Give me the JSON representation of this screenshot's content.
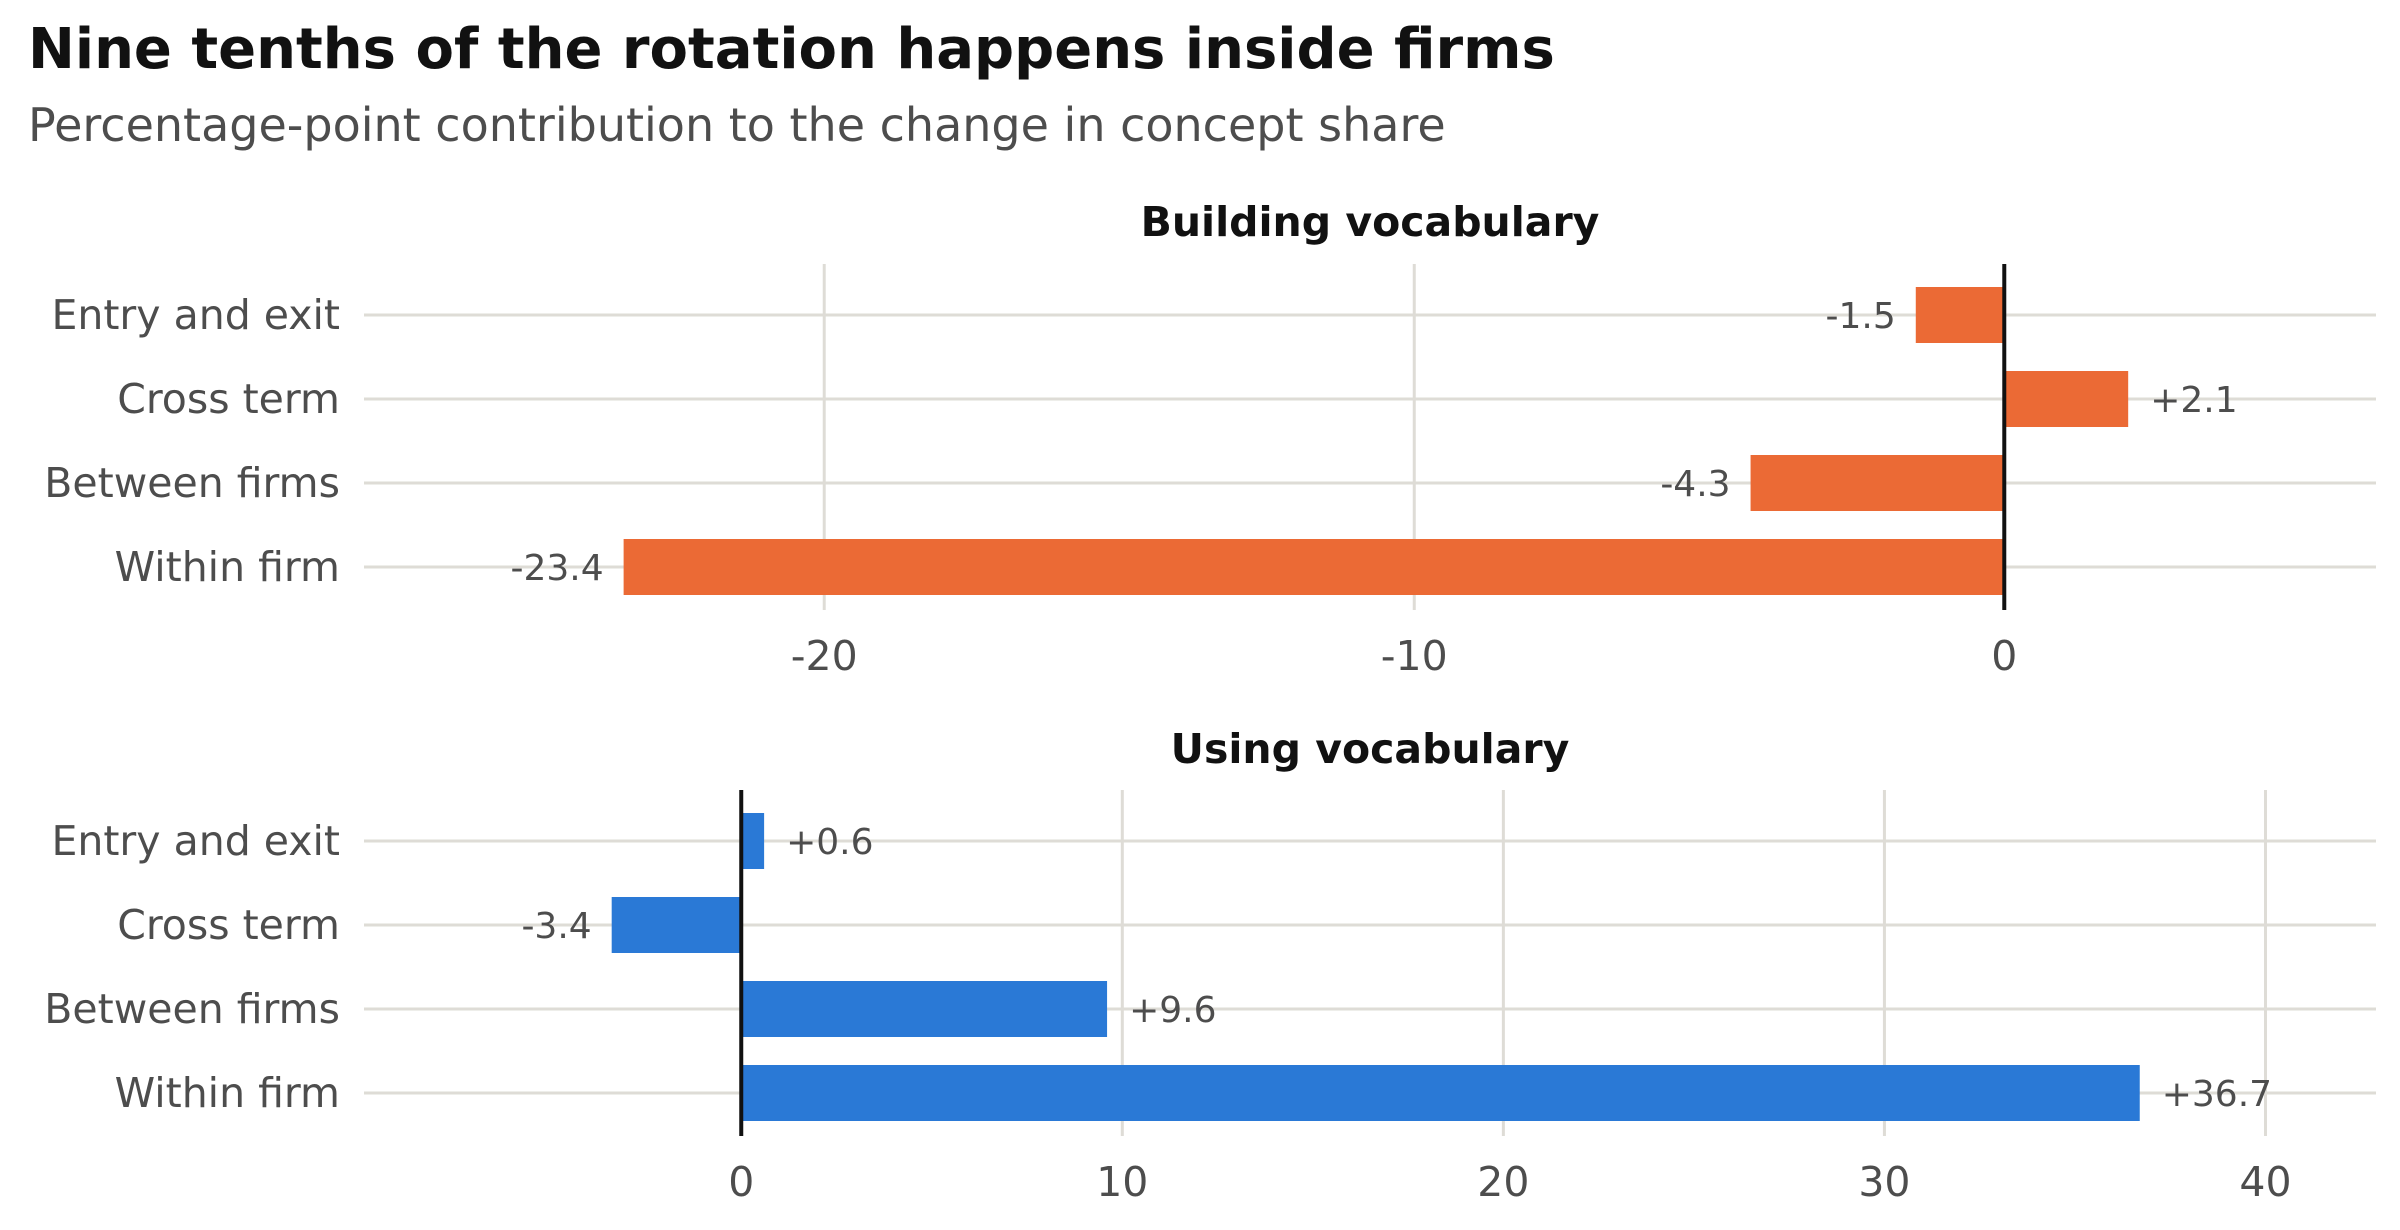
{
  "title": "Nine tenths of the rotation happens inside firms",
  "subtitle": "Percentage-point contribution to the change in concept share",
  "chart_data": [
    {
      "type": "bar",
      "orientation": "horizontal",
      "title": "Building vocabulary",
      "color": "#eb6a35",
      "categories": [
        "Entry and exit",
        "Cross term",
        "Between firms",
        "Within firm"
      ],
      "values": [
        -1.5,
        2.1,
        -4.3,
        -23.4
      ],
      "labels": [
        "-1.5",
        "+2.1",
        "-4.3",
        "-23.4"
      ],
      "xlim": [
        -27.8,
        6.3
      ],
      "xticks": [
        -20,
        -10,
        0
      ],
      "xtick_labels": [
        "-20",
        "-10",
        "0"
      ],
      "grid": true
    },
    {
      "type": "bar",
      "orientation": "horizontal",
      "title": "Using vocabulary",
      "color": "#2a79d6",
      "categories": [
        "Entry and exit",
        "Cross term",
        "Between firms",
        "Within firm"
      ],
      "values": [
        0.6,
        -3.4,
        9.6,
        36.7
      ],
      "labels": [
        "+0.6",
        "-3.4",
        "+9.6",
        "+36.7"
      ],
      "xlim": [
        -9.9,
        42.9
      ],
      "xticks": [
        0,
        10,
        20,
        30,
        40
      ],
      "xtick_labels": [
        "0",
        "10",
        "20",
        "30",
        "40"
      ],
      "grid": true
    }
  ]
}
